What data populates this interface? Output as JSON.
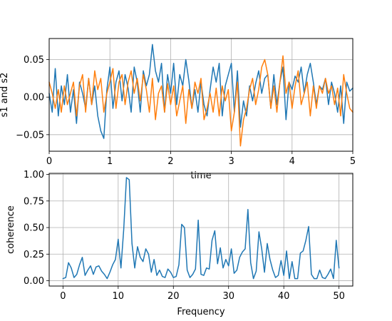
{
  "chart_data": [
    {
      "type": "line",
      "xlabel": "time",
      "ylabel": "s1 and s2",
      "xlim": [
        0,
        5
      ],
      "ylim": [
        -0.072,
        0.078
      ],
      "grid": true,
      "xticks": [
        0,
        1,
        2,
        3,
        4,
        5
      ],
      "xtick_labels": [
        "0",
        "1",
        "2",
        "3",
        "4",
        "5"
      ],
      "yticks": [
        -0.05,
        0.0,
        0.05
      ],
      "ytick_labels": [
        "−0.05",
        "0.00",
        "0.05"
      ],
      "x": [
        0,
        0.05,
        0.1,
        0.15,
        0.2,
        0.25,
        0.3,
        0.35,
        0.4,
        0.45,
        0.5,
        0.55,
        0.6,
        0.65,
        0.7,
        0.75,
        0.8,
        0.85,
        0.9,
        0.95,
        1,
        1.05,
        1.1,
        1.15,
        1.2,
        1.25,
        1.3,
        1.35,
        1.4,
        1.45,
        1.5,
        1.55,
        1.6,
        1.65,
        1.7,
        1.75,
        1.8,
        1.85,
        1.9,
        1.95,
        2,
        2.05,
        2.1,
        2.15,
        2.2,
        2.25,
        2.3,
        2.35,
        2.4,
        2.45,
        2.5,
        2.55,
        2.6,
        2.65,
        2.7,
        2.75,
        2.8,
        2.85,
        2.9,
        2.95,
        3,
        3.05,
        3.1,
        3.15,
        3.2,
        3.25,
        3.3,
        3.35,
        3.4,
        3.45,
        3.5,
        3.55,
        3.6,
        3.65,
        3.7,
        3.75,
        3.8,
        3.85,
        3.9,
        3.95,
        4,
        4.05,
        4.1,
        4.15,
        4.2,
        4.25,
        4.3,
        4.35,
        4.4,
        4.45,
        4.5,
        4.55,
        4.6,
        4.65,
        4.7,
        4.75,
        4.8,
        4.85,
        4.9,
        4.95,
        5
      ],
      "series": [
        {
          "color": "#1f77b4",
          "values": [
            0.005,
            -0.02,
            0.038,
            -0.025,
            0.015,
            -0.01,
            0.03,
            -0.02,
            0.01,
            -0.035,
            0.02,
            0.005,
            -0.015,
            0.025,
            -0.01,
            0.015,
            -0.025,
            -0.045,
            -0.055,
            0.01,
            0.04,
            -0.015,
            0.02,
            0.035,
            -0.005,
            0.03,
            0.012,
            -0.02,
            0.04,
            0.02,
            -0.02,
            0.035,
            0.015,
            0.03,
            0.07,
            0.035,
            0.02,
            0.045,
            -0.02,
            0.03,
            0.005,
            0.045,
            -0.01,
            0.03,
            0.015,
            0.05,
            0.022,
            -0.015,
            0.01,
            -0.02,
            0.02,
            -0.01,
            -0.025,
            0.01,
            0.04,
            0.02,
            0.045,
            -0.025,
            0.015,
            0.03,
            0.045,
            -0.02,
            0.035,
            -0.04,
            -0.005,
            -0.025,
            0.015,
            -0.005,
            0.018,
            0.035,
            0.005,
            0.025,
            0.03,
            -0.015,
            0.03,
            -0.01,
            0.02,
            0.04,
            -0.03,
            0.02,
            0.01,
            0.028,
            0.02,
            0.04,
            0.005,
            0.03,
            0.045,
            0.02,
            -0.01,
            0.015,
            0.01,
            0.025,
            -0.01,
            0.02,
            0.005,
            -0.02,
            0.015,
            -0.035,
            0.02,
            0.008,
            0.012
          ]
        },
        {
          "color": "#ff7f0e",
          "values": [
            0.02,
            0.005,
            -0.015,
            0.01,
            -0.02,
            0.015,
            -0.01,
            0.005,
            0.02,
            -0.025,
            0.015,
            0.03,
            -0.02,
            0.025,
            -0.01,
            0.035,
            0.01,
            0.025,
            -0.02,
            0.005,
            0.02,
            0.038,
            -0.015,
            0.02,
            0.03,
            -0.01,
            0.02,
            0.035,
            0.005,
            0.025,
            -0.005,
            0.03,
            0.01,
            -0.02,
            0.025,
            -0.03,
            0.005,
            0.015,
            -0.02,
            0.018,
            -0.01,
            0.015,
            -0.025,
            -0.005,
            0.015,
            -0.035,
            0.01,
            -0.015,
            0.02,
            0.005,
            0.025,
            -0.03,
            -0.015,
            0.005,
            -0.02,
            0.012,
            -0.025,
            0.015,
            -0.005,
            0.01,
            -0.045,
            -0.02,
            0.02,
            -0.065,
            -0.03,
            -0.015,
            0.01,
            0.025,
            -0.01,
            0.01,
            0.04,
            0.05,
            0.03,
            -0.015,
            0.015,
            -0.02,
            0.02,
            0.055,
            0.005,
            0.02,
            -0.015,
            0.015,
            0.035,
            -0.01,
            0.005,
            0.02,
            -0.025,
            0.015,
            -0.015,
            0.015,
            0.005,
            0.025,
            0.005,
            0.015,
            -0.01,
            0.012,
            -0.025,
            0.03,
            0.005,
            -0.015,
            -0.02
          ]
        }
      ]
    },
    {
      "type": "line",
      "xlabel": "Frequency",
      "ylabel": "coherence",
      "xlim": [
        -2.5,
        52.5
      ],
      "ylim": [
        -0.05,
        1.01
      ],
      "grid": true,
      "xticks": [
        0,
        10,
        20,
        30,
        40,
        50
      ],
      "xtick_labels": [
        "0",
        "10",
        "20",
        "30",
        "40",
        "50"
      ],
      "yticks": [
        0,
        0.25,
        0.5,
        0.75,
        1.0
      ],
      "ytick_labels": [
        "0.00",
        "0.25",
        "0.50",
        "0.75",
        "1.00"
      ],
      "x": [
        0,
        0.5,
        1,
        1.5,
        2,
        2.5,
        3,
        3.5,
        4,
        4.5,
        5,
        5.5,
        6,
        6.5,
        7,
        7.5,
        8,
        8.5,
        9,
        9.5,
        10,
        10.5,
        11,
        11.5,
        12,
        12.5,
        13,
        13.5,
        14,
        14.5,
        15,
        15.5,
        16,
        16.5,
        17,
        17.5,
        18,
        18.5,
        19,
        19.5,
        20,
        20.5,
        21,
        21.5,
        22,
        22.5,
        23,
        23.5,
        24,
        24.5,
        25,
        25.5,
        26,
        26.5,
        27,
        27.5,
        28,
        28.5,
        29,
        29.5,
        30,
        30.5,
        31,
        31.5,
        32,
        32.5,
        33,
        33.5,
        34,
        34.5,
        35,
        35.5,
        36,
        36.5,
        37,
        37.5,
        38,
        38.5,
        39,
        39.5,
        40,
        40.5,
        41,
        41.5,
        42,
        42.5,
        43,
        43.5,
        44,
        44.5,
        45,
        45.5,
        46,
        46.5,
        47,
        47.5,
        48,
        48.5,
        49,
        49.5,
        50
      ],
      "series": [
        {
          "color": "#1f77b4",
          "values": [
            0.02,
            0.03,
            0.17,
            0.12,
            0.03,
            0.06,
            0.15,
            0.22,
            0.05,
            0.1,
            0.14,
            0.06,
            0.13,
            0.14,
            0.09,
            0.06,
            0.02,
            0.08,
            0.15,
            0.2,
            0.39,
            0.12,
            0.48,
            0.97,
            0.95,
            0.35,
            0.12,
            0.32,
            0.22,
            0.18,
            0.3,
            0.25,
            0.08,
            0.2,
            0.05,
            0.1,
            0.04,
            0.03,
            0.11,
            0.08,
            0.03,
            0.04,
            0.15,
            0.53,
            0.5,
            0.1,
            0.03,
            0.06,
            0.11,
            0.57,
            0.06,
            0.05,
            0.12,
            0.11,
            0.38,
            0.47,
            0.16,
            0.31,
            0.12,
            0.2,
            0.14,
            0.3,
            0.07,
            0.1,
            0.22,
            0.27,
            0.3,
            0.67,
            0.17,
            0.02,
            0.09,
            0.46,
            0.3,
            0.08,
            0.35,
            0.2,
            0.1,
            0.03,
            0.05,
            0.19,
            0.05,
            0.28,
            0.02,
            0.18,
            0.02,
            0.02,
            0.26,
            0.28,
            0.38,
            0.51,
            0.06,
            0.02,
            0.02,
            0.1,
            0.03,
            0.02,
            0.06,
            0.11,
            0.02,
            0.38,
            0.12
          ]
        }
      ]
    }
  ]
}
